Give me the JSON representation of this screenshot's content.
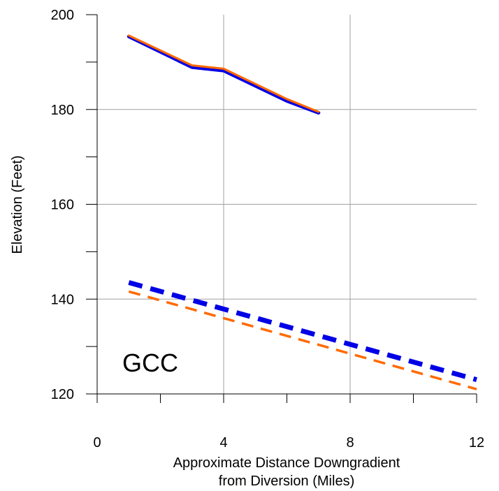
{
  "chart_data": {
    "type": "line",
    "xlabel": [
      "Approximate Distance Downgradient",
      "from Diversion (Miles)"
    ],
    "ylabel": "Elevation (Feet)",
    "xlim": [
      0,
      12
    ],
    "ylim": [
      120,
      200
    ],
    "x_ticks": [
      0,
      4,
      8,
      12
    ],
    "x_minor_ticks": [
      2,
      6,
      10
    ],
    "y_ticks": [
      120,
      140,
      160,
      180,
      200
    ],
    "y_minor_ticks": [
      130,
      150,
      170,
      190
    ],
    "grid": true,
    "annotation": "GCC",
    "series": [
      {
        "color": "#0000e6",
        "style": "solid",
        "x": [
          1,
          3,
          4,
          6,
          7
        ],
        "y": [
          195.4,
          188.9,
          188.2,
          181.8,
          179.3
        ]
      },
      {
        "color": "#ff6a00",
        "style": "solid",
        "x": [
          1,
          3,
          4,
          6,
          7
        ],
        "y": [
          195.6,
          189.3,
          188.6,
          182.2,
          179.5
        ]
      },
      {
        "color": "#0000e6",
        "style": "dashed",
        "x": [
          1,
          12
        ],
        "y": [
          143.5,
          123.0
        ]
      },
      {
        "color": "#ff6a00",
        "style": "dashed",
        "x": [
          1,
          12
        ],
        "y": [
          141.6,
          121.0
        ]
      }
    ]
  }
}
